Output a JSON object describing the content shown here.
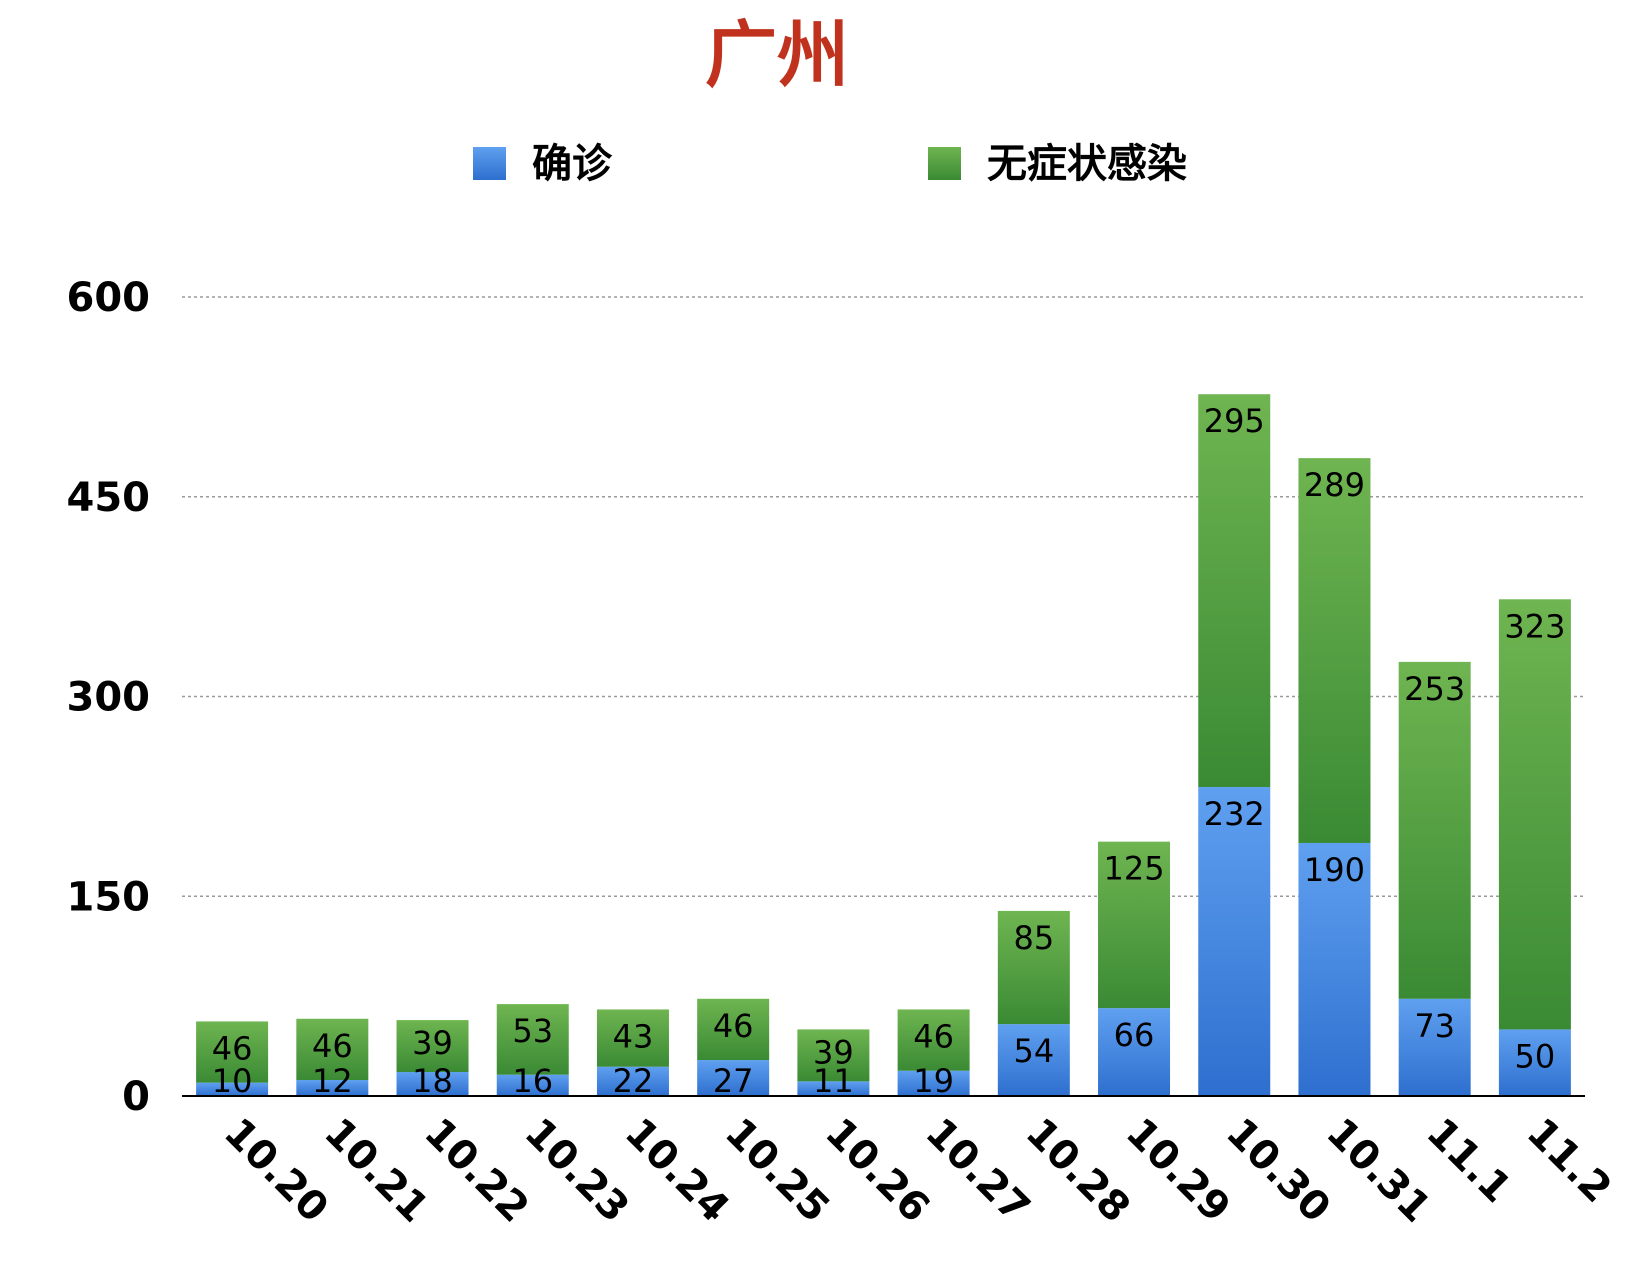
{
  "chart_data": {
    "type": "bar",
    "stacked": true,
    "title": "广州",
    "xlabel": "",
    "ylabel": "",
    "categories": [
      "10.20",
      "10.21",
      "10.22",
      "10.23",
      "10.24",
      "10.25",
      "10.26",
      "10.27",
      "10.28",
      "10.29",
      "10.30",
      "10.31",
      "11.1",
      "11.2"
    ],
    "series": [
      {
        "name": "确诊",
        "values": [
          10,
          12,
          18,
          16,
          22,
          27,
          11,
          19,
          54,
          66,
          232,
          190,
          73,
          50
        ]
      },
      {
        "name": "无症状感染",
        "values": [
          46,
          46,
          39,
          53,
          43,
          46,
          39,
          46,
          85,
          125,
          295,
          289,
          253,
          323
        ]
      }
    ],
    "ylim": [
      0,
      600
    ],
    "yticks": [
      0,
      150,
      300,
      450,
      600
    ],
    "grid": true,
    "legend": "top-center",
    "data_labels": true
  },
  "colors": {
    "title": "#c0321e",
    "series_0": "#3f87e0",
    "series_1": "#4a9a3c",
    "grid": "#9a9a9a",
    "text": "#000000"
  }
}
